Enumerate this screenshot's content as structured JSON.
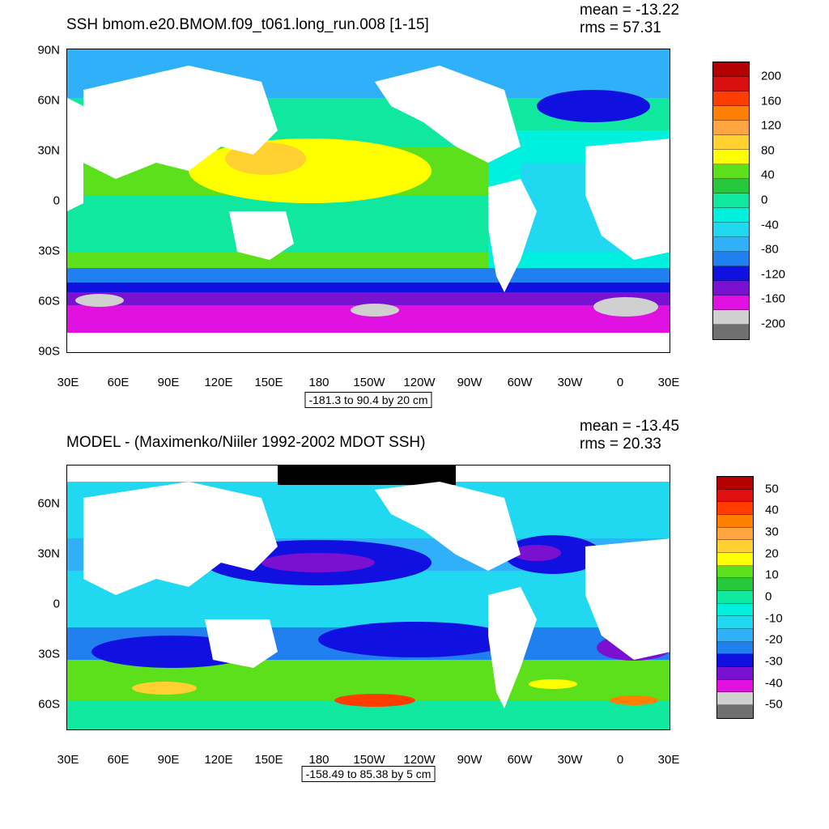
{
  "panels": [
    {
      "title": "SSH bmom.e20.BMOM.f09_t061.long_run.008 [1-15]",
      "mean": "mean = -13.22",
      "rms": "rms = 57.31",
      "lat_labels": [
        "90N",
        "60N",
        "30N",
        "0",
        "30S",
        "60S",
        "90S"
      ],
      "lon_labels": [
        "30E",
        "60E",
        "90E",
        "120E",
        "150E",
        "180",
        "150W",
        "120W",
        "90W",
        "60W",
        "30W",
        "0",
        "30E"
      ],
      "range_text": "-181.3 to 90.4 by 20 cm",
      "colorbar": {
        "labels": [
          "200",
          "160",
          "120",
          "80",
          "40",
          "0",
          "-40",
          "-80",
          "-120",
          "-160",
          "-200"
        ],
        "colors": [
          "#b50000",
          "#d81010",
          "#ff3c00",
          "#ff7f00",
          "#ffa540",
          "#ffd030",
          "#ffff00",
          "#5ce01c",
          "#24c83a",
          "#10e8a0",
          "#00f0e0",
          "#20d8f0",
          "#30b0f8",
          "#2080f0",
          "#1010e0",
          "#7a10d0",
          "#e010e0",
          "#d0d0d0",
          "#707070"
        ]
      }
    },
    {
      "title": "MODEL - (Maximenko/Niiler 1992-2002 MDOT SSH)",
      "mean": "mean = -13.45",
      "rms": "rms = 20.33",
      "lat_labels": [
        "60N",
        "30N",
        "0",
        "30S",
        "60S"
      ],
      "lon_labels": [
        "30E",
        "60E",
        "90E",
        "120E",
        "150E",
        "180",
        "150W",
        "120W",
        "90W",
        "60W",
        "30W",
        "0",
        "30E"
      ],
      "range_text": "-158.49 to 85.38 by 5 cm",
      "colorbar": {
        "labels": [
          "50",
          "40",
          "30",
          "20",
          "10",
          "0",
          "-10",
          "-20",
          "-30",
          "-40",
          "-50"
        ],
        "colors": [
          "#b50000",
          "#e01010",
          "#ff3c00",
          "#ff7f00",
          "#ffa540",
          "#ffd030",
          "#ffff00",
          "#5ce01c",
          "#24c83a",
          "#10e8a0",
          "#00f0e0",
          "#20d8f0",
          "#30b0f8",
          "#2080f0",
          "#1010e0",
          "#7a10d0",
          "#e010e0",
          "#d0d0d0",
          "#707070"
        ]
      }
    }
  ]
}
